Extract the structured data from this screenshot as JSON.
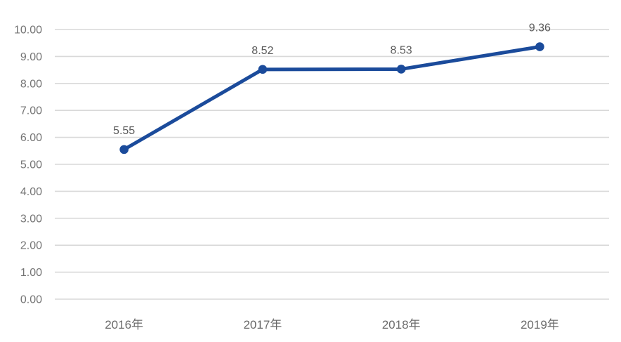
{
  "chart_data": {
    "type": "line",
    "title": "",
    "xlabel": "",
    "ylabel": "",
    "categories": [
      "2016年",
      "2017年",
      "2018年",
      "2019年"
    ],
    "values": [
      5.55,
      8.52,
      8.53,
      9.36
    ],
    "data_labels": [
      "5.55",
      "8.52",
      "8.53",
      "9.36"
    ],
    "y_ticks": [
      "0.00",
      "1.00",
      "2.00",
      "3.00",
      "4.00",
      "5.00",
      "6.00",
      "7.00",
      "8.00",
      "9.00",
      "10.00"
    ],
    "ylim": [
      0,
      10
    ],
    "grid": "horizontal-only",
    "legend": "none",
    "colors": {
      "line": "#1b4b9b",
      "marker": "#1b4b9b",
      "gridline": "#d9d9d9",
      "tick_label": "#757575",
      "x_label": "#6b6b6b",
      "data_label": "#595959",
      "edge_line": "#1f1f1f",
      "background": "#ffffff"
    }
  }
}
